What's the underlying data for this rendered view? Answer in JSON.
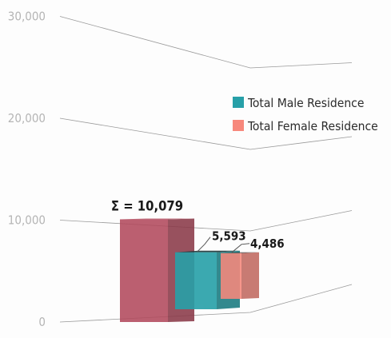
{
  "chart_data": {
    "type": "bar",
    "ticks": [
      {
        "value": 0,
        "label": "0"
      },
      {
        "value": 10000,
        "label": "10,000"
      },
      {
        "value": 20000,
        "label": "20,000"
      },
      {
        "value": 30000,
        "label": "30,000"
      }
    ],
    "ylim": [
      0,
      30000
    ],
    "total": {
      "value": 10079,
      "label": "Σ = 10,079",
      "color": "#b24a5d"
    },
    "series": [
      {
        "name": "Total Male Residence",
        "value": 5593,
        "label": "5,593",
        "color": "#27a0a8"
      },
      {
        "name": "Total Female Residence",
        "value": 4486,
        "label": "4,486",
        "color": "#f7887c"
      }
    ],
    "legend_position": "right",
    "grid": true
  }
}
